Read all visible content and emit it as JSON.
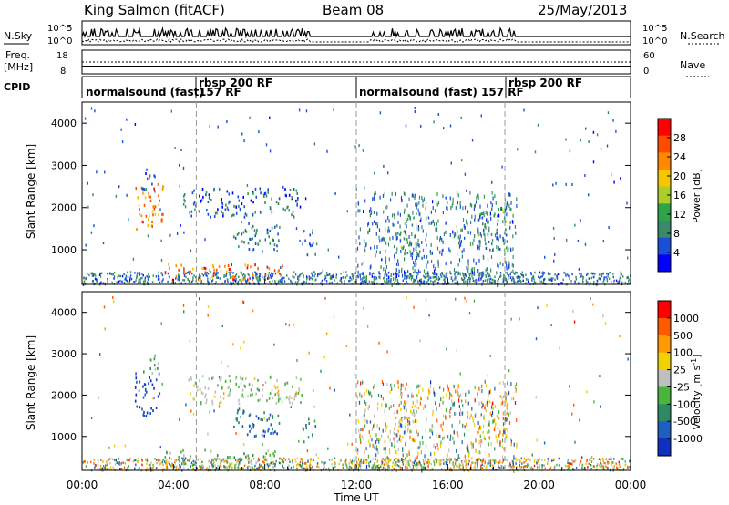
{
  "header": {
    "station": "King Salmon (fitACF)",
    "beam": "Beam 08",
    "date": "25/May/2013"
  },
  "strip": {
    "nsky_label": "N.Sky",
    "nsky_top": "10^5",
    "nsky_bottom": "10^0",
    "nsearch_label": "N.Search",
    "nsearch_top": "10^5",
    "nsearch_bottom": "10^0",
    "freq_label_1": "Freq.",
    "freq_label_2": "[MHz]",
    "freq_top": "18",
    "freq_bottom": "8",
    "nave_label": "Nave",
    "nave_top": "60",
    "nave_bottom": "0",
    "cpid_label": "CPID",
    "cpid_segments": [
      {
        "text": "normalsound (fast)",
        "text2": ""
      },
      {
        "text": "rbsp  200  RF",
        "text2": "157  RF"
      },
      {
        "text": "normalsound (fast)  157  RF",
        "text2": ""
      },
      {
        "text": "rbsp  200  RF",
        "text2": ""
      }
    ]
  },
  "power_panel": {
    "ylabel": "Slant Range [km]",
    "colorbar_label": "Power [dB]",
    "colorbar_ticks": [
      "28",
      "24",
      "20",
      "16",
      "12",
      "8",
      "4"
    ]
  },
  "velocity_panel": {
    "ylabel": "Slant Range [km]",
    "colorbar_label": "Velocity  [m s",
    "colorbar_label_sup": "-1",
    "colorbar_label_end": "]",
    "colorbar_ticks": [
      "1000",
      "500",
      "100",
      "25",
      "-25",
      "-100",
      "-500",
      "-1000"
    ]
  },
  "xaxis": {
    "label": "Time UT",
    "ticks": [
      "00:00",
      "04:00",
      "08:00",
      "12:00",
      "16:00",
      "20:00",
      "00:00"
    ]
  },
  "chart_data": {
    "type": "heatmap",
    "title": "King Salmon (fitACF)  Beam 08  25/May/2013",
    "xlabel": "Time UT",
    "ylabel": "Slant Range [km]",
    "xlim_hours": [
      0,
      24
    ],
    "ylim_km": [
      180,
      4500
    ],
    "y_ticks": [
      "1000",
      "2000",
      "3000",
      "4000"
    ],
    "power_colors": [
      "#0000ff",
      "#1a4fd6",
      "#3a8a6a",
      "#2fa24a",
      "#a8cf2a",
      "#f7c600",
      "#ff8a00",
      "#ff4a00",
      "#ff0000"
    ],
    "power_range_db": [
      0,
      30
    ],
    "velocity_colors": [
      "#1030c0",
      "#1f5fbf",
      "#2e8a64",
      "#49b53a",
      "#bfbfbf",
      "#f2d100",
      "#ff9a00",
      "#ff5a00",
      "#ff0000"
    ],
    "velocity_range": [
      -1000,
      1000
    ],
    "cpid_boundaries_hours": [
      5.0,
      12.0,
      18.5
    ],
    "series": [
      {
        "name": "power",
        "echo_regions": [
          {
            "t": [
              0.0,
              0.8
            ],
            "r": [
              200,
              320
            ],
            "v": 10
          },
          {
            "t": [
              2.3,
              3.6
            ],
            "r": [
              1500,
              2600
            ],
            "v": 22
          },
          {
            "t": [
              2.6,
              3.2
            ],
            "r": [
              2400,
              3000
            ],
            "v": 6
          },
          {
            "t": [
              3.6,
              8.8
            ],
            "r": [
              300,
              700
            ],
            "v": 24
          },
          {
            "t": [
              4.4,
              9.6
            ],
            "r": [
              1800,
              2500
            ],
            "v": 6
          },
          {
            "t": [
              6.6,
              8.6
            ],
            "r": [
              1000,
              1700
            ],
            "v": 8
          },
          {
            "t": [
              9.6,
              10.2
            ],
            "r": [
              900,
              1500
            ],
            "v": 7
          },
          {
            "t": [
              13.6,
              14.6
            ],
            "r": [
              900,
              1900
            ],
            "v": 10
          },
          {
            "t": [
              17.3,
              18.6
            ],
            "r": [
              1000,
              2000
            ],
            "v": 9
          }
        ]
      },
      {
        "name": "velocity",
        "echo_regions": [
          {
            "t": [
              2.3,
              3.4
            ],
            "r": [
              1500,
              2600
            ],
            "v": -800
          },
          {
            "t": [
              2.8,
              3.4
            ],
            "r": [
              2500,
              3000
            ],
            "v": -300
          },
          {
            "t": [
              3.6,
              8.8
            ],
            "r": [
              300,
              700
            ],
            "v": -250
          },
          {
            "t": [
              4.4,
              9.6
            ],
            "r": [
              1800,
              2500
            ],
            "v": -80
          },
          {
            "t": [
              6.6,
              8.6
            ],
            "r": [
              1000,
              1700
            ],
            "v": -600
          },
          {
            "t": [
              9.6,
              10.2
            ],
            "r": [
              900,
              1500
            ],
            "v": -400
          },
          {
            "t": [
              13.6,
              14.6
            ],
            "r": [
              900,
              1900
            ],
            "v": 250
          },
          {
            "t": [
              17.3,
              18.6
            ],
            "r": [
              1000,
              2000
            ],
            "v": 400
          }
        ]
      }
    ]
  }
}
